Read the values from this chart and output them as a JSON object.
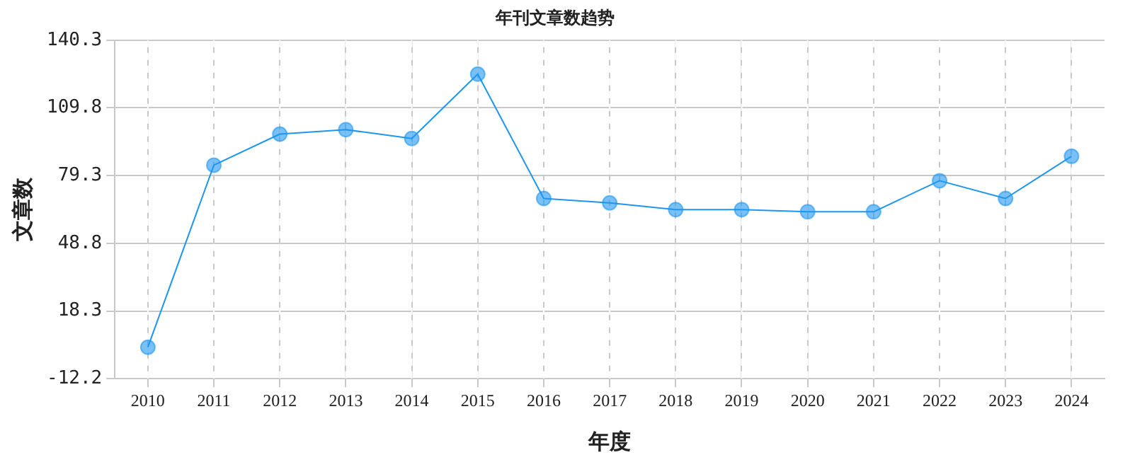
{
  "chart_data": {
    "type": "line",
    "title": "年刊文章数趋势",
    "xlabel": "年度",
    "ylabel": "文章数",
    "categories": [
      "2010",
      "2011",
      "2012",
      "2013",
      "2014",
      "2015",
      "2016",
      "2017",
      "2018",
      "2019",
      "2020",
      "2021",
      "2022",
      "2023",
      "2024"
    ],
    "series": [
      {
        "color": "#1e96f0",
        "values": [
          2,
          84,
          98,
          100,
          96,
          125,
          69,
          67,
          64,
          64,
          63,
          63,
          77,
          69,
          88
        ]
      }
    ],
    "ylim": [
      -12.2,
      140.3
    ],
    "yticks": [
      -12.2,
      18.3,
      48.8,
      79.3,
      109.8,
      140.3
    ],
    "grid": true,
    "marker": "circle",
    "line_style": "solid"
  }
}
